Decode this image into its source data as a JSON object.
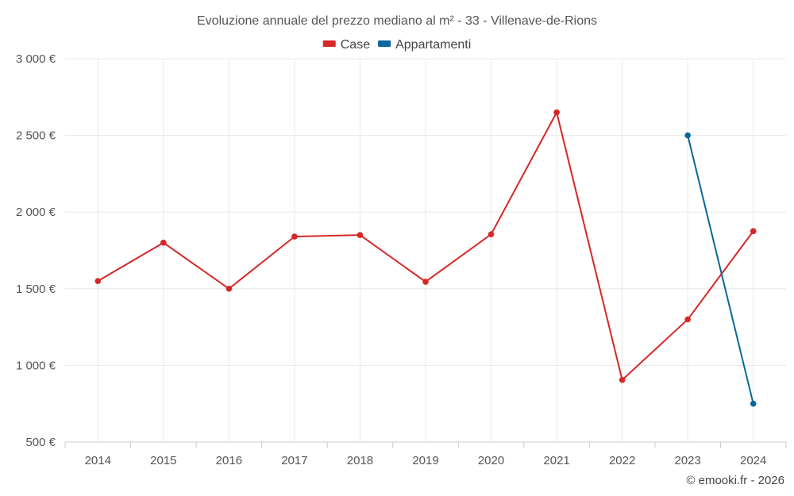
{
  "chart_data": {
    "type": "line",
    "title": "Evoluzione annuale del prezzo mediano al m² - 33 - Villenave-de-Rions",
    "categories": [
      "2014",
      "2015",
      "2016",
      "2017",
      "2018",
      "2019",
      "2020",
      "2021",
      "2022",
      "2023",
      "2024"
    ],
    "series": [
      {
        "name": "Case",
        "color": "#d62728",
        "values": [
          1550,
          1800,
          1500,
          1840,
          1850,
          1545,
          1855,
          2650,
          905,
          1300,
          1875
        ]
      },
      {
        "name": "Appartamenti",
        "color": "#08679c",
        "values": [
          null,
          null,
          null,
          null,
          null,
          null,
          null,
          null,
          null,
          2500,
          750
        ]
      }
    ],
    "ylim": [
      500,
      3000
    ],
    "y_ticks": [
      500,
      1000,
      1500,
      2000,
      2500,
      3000
    ],
    "y_tick_labels": [
      "500 €",
      "1 000 €",
      "1 500 €",
      "2 000 €",
      "2 500 €",
      "3 000 €"
    ],
    "legend_position": "top-center",
    "grid": true,
    "credit": "© emooki.fr - 2026"
  }
}
